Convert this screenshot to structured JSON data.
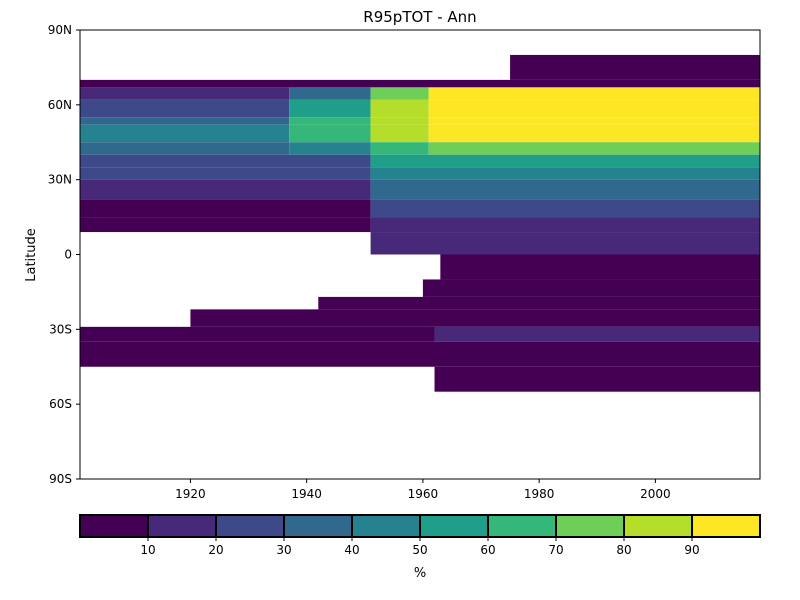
{
  "chart_data": {
    "type": "heatmap",
    "title": "R95pTOT - Ann",
    "ylabel": "Latitude",
    "xlabel": "",
    "xlim": [
      1901,
      2018
    ],
    "ylim": [
      -90,
      90
    ],
    "x_ticks": [
      1920,
      1940,
      1960,
      1980,
      2000
    ],
    "y_ticks": [
      {
        "value": 90,
        "label": "90N"
      },
      {
        "value": 60,
        "label": "60N"
      },
      {
        "value": 30,
        "label": "30N"
      },
      {
        "value": 0,
        "label": "0"
      },
      {
        "value": -30,
        "label": "30S"
      },
      {
        "value": -60,
        "label": "60S"
      },
      {
        "value": -90,
        "label": "90S"
      }
    ],
    "colorbar": {
      "label": "%",
      "range": [
        0,
        100
      ],
      "ticks": [
        10,
        20,
        30,
        40,
        50,
        60,
        70,
        80,
        90
      ],
      "colors": [
        "#440154",
        "#482878",
        "#3e4989",
        "#31688e",
        "#26828e",
        "#1f9e89",
        "#35b779",
        "#6ece58",
        "#b5de2b",
        "#fde725"
      ]
    },
    "regions": [
      {
        "lat": [
          70,
          80
        ],
        "year": [
          1975,
          2018
        ],
        "value": 5
      },
      {
        "lat": [
          67,
          70
        ],
        "year": [
          1901,
          2018
        ],
        "value": 5
      },
      {
        "lat": [
          62,
          67
        ],
        "year": [
          1901,
          1937
        ],
        "value": 12
      },
      {
        "lat": [
          62,
          67
        ],
        "year": [
          1937,
          1951
        ],
        "value": 35
      },
      {
        "lat": [
          62,
          67
        ],
        "year": [
          1951,
          1961
        ],
        "value": 75
      },
      {
        "lat": [
          62,
          67
        ],
        "year": [
          1961,
          2018
        ],
        "value": 92
      },
      {
        "lat": [
          55,
          62
        ],
        "year": [
          1901,
          1937
        ],
        "value": 22
      },
      {
        "lat": [
          55,
          62
        ],
        "year": [
          1937,
          1951
        ],
        "value": 55
      },
      {
        "lat": [
          55,
          62
        ],
        "year": [
          1951,
          1961
        ],
        "value": 82
      },
      {
        "lat": [
          55,
          62
        ],
        "year": [
          1961,
          2018
        ],
        "value": 93
      },
      {
        "lat": [
          52,
          55
        ],
        "year": [
          1901,
          1937
        ],
        "value": 35
      },
      {
        "lat": [
          52,
          55
        ],
        "year": [
          1937,
          1951
        ],
        "value": 65
      },
      {
        "lat": [
          52,
          55
        ],
        "year": [
          1951,
          1961
        ],
        "value": 85
      },
      {
        "lat": [
          52,
          55
        ],
        "year": [
          1961,
          2018
        ],
        "value": 95
      },
      {
        "lat": [
          45,
          52
        ],
        "year": [
          1901,
          1937
        ],
        "value": 42
      },
      {
        "lat": [
          45,
          52
        ],
        "year": [
          1937,
          1951
        ],
        "value": 62
      },
      {
        "lat": [
          45,
          52
        ],
        "year": [
          1951,
          1961
        ],
        "value": 85
      },
      {
        "lat": [
          45,
          52
        ],
        "year": [
          1961,
          2018
        ],
        "value": 95
      },
      {
        "lat": [
          40,
          45
        ],
        "year": [
          1901,
          1937
        ],
        "value": 32
      },
      {
        "lat": [
          40,
          45
        ],
        "year": [
          1937,
          1951
        ],
        "value": 45
      },
      {
        "lat": [
          40,
          45
        ],
        "year": [
          1951,
          1961
        ],
        "value": 62
      },
      {
        "lat": [
          40,
          45
        ],
        "year": [
          1961,
          2018
        ],
        "value": 75
      },
      {
        "lat": [
          35,
          40
        ],
        "year": [
          1901,
          1951
        ],
        "value": 25
      },
      {
        "lat": [
          35,
          40
        ],
        "year": [
          1951,
          2018
        ],
        "value": 55
      },
      {
        "lat": [
          30,
          35
        ],
        "year": [
          1901,
          1951
        ],
        "value": 22
      },
      {
        "lat": [
          30,
          35
        ],
        "year": [
          1951,
          2018
        ],
        "value": 45
      },
      {
        "lat": [
          22,
          30
        ],
        "year": [
          1901,
          1951
        ],
        "value": 15
      },
      {
        "lat": [
          22,
          30
        ],
        "year": [
          1951,
          2018
        ],
        "value": 35
      },
      {
        "lat": [
          15,
          22
        ],
        "year": [
          1901,
          1951
        ],
        "value": 5
      },
      {
        "lat": [
          15,
          22
        ],
        "year": [
          1951,
          2018
        ],
        "value": 22
      },
      {
        "lat": [
          9,
          15
        ],
        "year": [
          1901,
          1951
        ],
        "value": 5
      },
      {
        "lat": [
          9,
          15
        ],
        "year": [
          1951,
          2018
        ],
        "value": 15
      },
      {
        "lat": [
          0,
          9
        ],
        "year": [
          1951,
          2018
        ],
        "value": 12
      },
      {
        "lat": [
          -10,
          0
        ],
        "year": [
          1963,
          2018
        ],
        "value": 5
      },
      {
        "lat": [
          -17,
          -10
        ],
        "year": [
          1960,
          2018
        ],
        "value": 8
      },
      {
        "lat": [
          -22,
          -17
        ],
        "year": [
          1942,
          2018
        ],
        "value": 5
      },
      {
        "lat": [
          -29,
          -22
        ],
        "year": [
          1920,
          2018
        ],
        "value": 5
      },
      {
        "lat": [
          -35,
          -29
        ],
        "year": [
          1901,
          1962
        ],
        "value": 5
      },
      {
        "lat": [
          -35,
          -29
        ],
        "year": [
          1962,
          2018
        ],
        "value": 12
      },
      {
        "lat": [
          -45,
          -35
        ],
        "year": [
          1901,
          2018
        ],
        "value": 5
      },
      {
        "lat": [
          -55,
          -45
        ],
        "year": [
          1962,
          2018
        ],
        "value": 5
      }
    ]
  }
}
